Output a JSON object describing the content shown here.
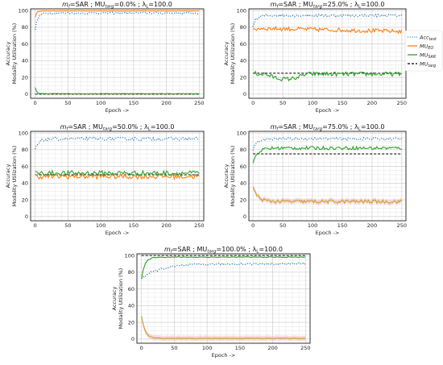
{
  "colors": {
    "acc_test": "#1f77b4",
    "mu_eo": "#ff7f0e",
    "mu_sar": "#2ca02c",
    "mu_targ": "#000000",
    "overlap": "#c9a227",
    "band": "#f4b6c2",
    "grid": "#cccccc"
  },
  "legend": {
    "items": [
      {
        "key": "acc_test",
        "base": "Acc",
        "sub": "test",
        "style": "dotted"
      },
      {
        "key": "mu_eo",
        "base": "MU",
        "sub": "EO",
        "style": "solid"
      },
      {
        "key": "mu_sar",
        "base": "MU",
        "sub": "SAR",
        "style": "solid"
      },
      {
        "key": "mu_targ",
        "base": "MU",
        "sub": "targ",
        "style": "dashed"
      }
    ]
  },
  "chart_data": [
    {
      "type": "line",
      "title": {
        "pre": "m",
        "pre_sub": "f",
        "mid": "=SAR ; MU",
        "mid_sub": "targ",
        "post": "=0.0%  ; λ",
        "post_sub": "L",
        "end": "=100.0"
      },
      "xlabel": "Epoch ->",
      "ylabel": [
        "Accuracy",
        "Modality Utilization (%)"
      ],
      "xlim": [
        -7,
        257
      ],
      "ylim": [
        -5,
        102
      ],
      "xticks": [
        "0",
        "50",
        "100",
        "150",
        "200",
        "250"
      ],
      "yticks": [
        "0",
        "20",
        "40",
        "60",
        "80",
        "100"
      ],
      "grid": true,
      "series": {
        "acc": {
          "start": 78,
          "plateau": 97,
          "rise": 4,
          "noise": 1
        },
        "eo": {
          "start": 92,
          "plateau": 99.5,
          "rise": 2,
          "noise": 0.2
        },
        "sar": {
          "start": 8,
          "plateau": 0.5,
          "rise": 2,
          "noise": 0.2
        },
        "targ": 0
      }
    },
    {
      "type": "line",
      "title": {
        "pre": "m",
        "pre_sub": "f",
        "mid": "=SAR ; MU",
        "mid_sub": "targ",
        "post": "=25.0% ; λ",
        "post_sub": "L",
        "end": "=100.0"
      },
      "xlabel": "Epoch ->",
      "ylabel": [
        "Accuracy",
        "Modality Utilization (%)"
      ],
      "xlim": [
        -7,
        257
      ],
      "ylim": [
        -5,
        102
      ],
      "xticks": [
        "0",
        "50",
        "100",
        "150",
        "200",
        "250"
      ],
      "yticks": [
        "0",
        "20",
        "40",
        "60",
        "80",
        "100"
      ],
      "grid": true,
      "series": {
        "acc": {
          "start": 82,
          "plateau": 94,
          "rise": 6,
          "noise": 1.5
        },
        "eo": {
          "start": 75,
          "plateau": 79,
          "drift_end": 75,
          "rise": 4,
          "noise": 2.5
        },
        "sar": {
          "start": 26,
          "dip": 18,
          "plateau": 24,
          "rise": 4,
          "noise": 2.5
        },
        "targ": 25
      }
    },
    {
      "type": "line",
      "title": {
        "pre": "m",
        "pre_sub": "f",
        "mid": "=SAR ; MU",
        "mid_sub": "targ",
        "post": "=50.0% ; λ",
        "post_sub": "L",
        "end": "=100.0"
      },
      "xlabel": "Epoch ->",
      "ylabel": [
        "Accuracy",
        "Modality Utilization (%)"
      ],
      "xlim": [
        -7,
        257
      ],
      "ylim": [
        -5,
        102
      ],
      "xticks": [
        "0",
        "50",
        "100",
        "150",
        "200",
        "250"
      ],
      "yticks": [
        "0",
        "20",
        "40",
        "60",
        "80",
        "100"
      ],
      "grid": true,
      "series": {
        "acc": {
          "start": 80,
          "plateau": 93,
          "rise": 6,
          "noise": 2
        },
        "eo": {
          "start": 48,
          "plateau": 48,
          "rise": 2,
          "noise": 3
        },
        "sar": {
          "start": 52,
          "plateau": 52,
          "rise": 2,
          "noise": 3
        },
        "targ": 50
      }
    },
    {
      "type": "line",
      "title": {
        "pre": "m",
        "pre_sub": "f",
        "mid": "=SAR ; MU",
        "mid_sub": "targ",
        "post": "=75.0% ; λ",
        "post_sub": "L",
        "end": "=100.0"
      },
      "xlabel": "Epoch ->",
      "ylabel": [
        "Accuracy",
        "Modality Utilization (%)"
      ],
      "xlim": [
        -7,
        257
      ],
      "ylim": [
        -5,
        102
      ],
      "xticks": [
        "0",
        "50",
        "100",
        "150",
        "200",
        "250"
      ],
      "yticks": [
        "0",
        "20",
        "40",
        "60",
        "80",
        "100"
      ],
      "grid": true,
      "series": {
        "acc": {
          "start": 80,
          "plateau": 93,
          "rise": 6,
          "noise": 1.5
        },
        "eo": {
          "start": 35,
          "plateau": 18,
          "rise": 8,
          "noise": 2
        },
        "sar": {
          "start": 65,
          "plateau": 82,
          "rise": 8,
          "noise": 2
        },
        "targ": 75,
        "band": true
      }
    },
    {
      "type": "line",
      "title": {
        "pre": "m",
        "pre_sub": "f",
        "mid": "=SAR ; MU",
        "mid_sub": "targ",
        "post": "=100.0% ; λ",
        "post_sub": "L",
        "end": "=100.0"
      },
      "xlabel": "Epoch ->",
      "ylabel": [
        "Accuracy",
        "Modality Utilization (%)"
      ],
      "xlim": [
        -7,
        257
      ],
      "ylim": [
        -5,
        102
      ],
      "xticks": [
        "0",
        "50",
        "100",
        "150",
        "200",
        "250"
      ],
      "yticks": [
        "0",
        "20",
        "40",
        "60",
        "80",
        "100"
      ],
      "grid": true,
      "series": {
        "acc": {
          "start": 73,
          "plateau": 90,
          "rise": 30,
          "noise": 1.2
        },
        "eo": {
          "start": 28,
          "plateau": 1,
          "rise": 5,
          "noise": 0.4
        },
        "sar": {
          "start": 72,
          "plateau": 98,
          "rise": 5,
          "noise": 0.5
        },
        "targ": 100,
        "band": true
      }
    }
  ]
}
